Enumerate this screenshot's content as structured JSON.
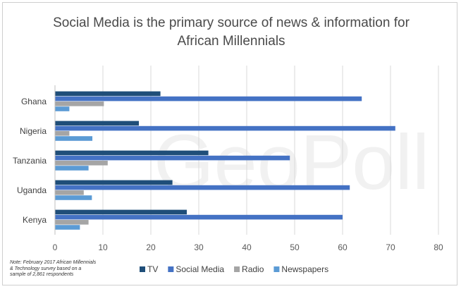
{
  "chart_data": {
    "type": "bar",
    "orientation": "horizontal",
    "title_lines": [
      "Social Media is the primary source of news & information for",
      "African Millennials"
    ],
    "categories": [
      "Ghana",
      "Nigeria",
      "Tanzania",
      "Uganda",
      "Kenya"
    ],
    "series": [
      {
        "name": "TV",
        "color": "#1f4e79",
        "values": [
          22,
          17.5,
          32,
          24.5,
          27.5
        ]
      },
      {
        "name": "Social Media",
        "color": "#4472c4",
        "values": [
          64,
          71,
          49,
          61.5,
          60
        ]
      },
      {
        "name": "Radio",
        "color": "#a5a5a5",
        "values": [
          10.2,
          3,
          11,
          6,
          7
        ]
      },
      {
        "name": "Newspapers",
        "color": "#5b9bd5",
        "values": [
          3,
          7.8,
          7,
          7.7,
          5.2
        ]
      }
    ],
    "xlim": [
      0,
      80
    ],
    "x_ticks": [
      0,
      10,
      20,
      30,
      40,
      50,
      60,
      70,
      80
    ],
    "grid": true,
    "legend_position": "bottom",
    "watermark": "GeoPoll"
  },
  "note_lines": [
    "Note: February 2017 African Millennials",
    "& Technology survey based on a",
    "sample of 2,861 respondents"
  ]
}
